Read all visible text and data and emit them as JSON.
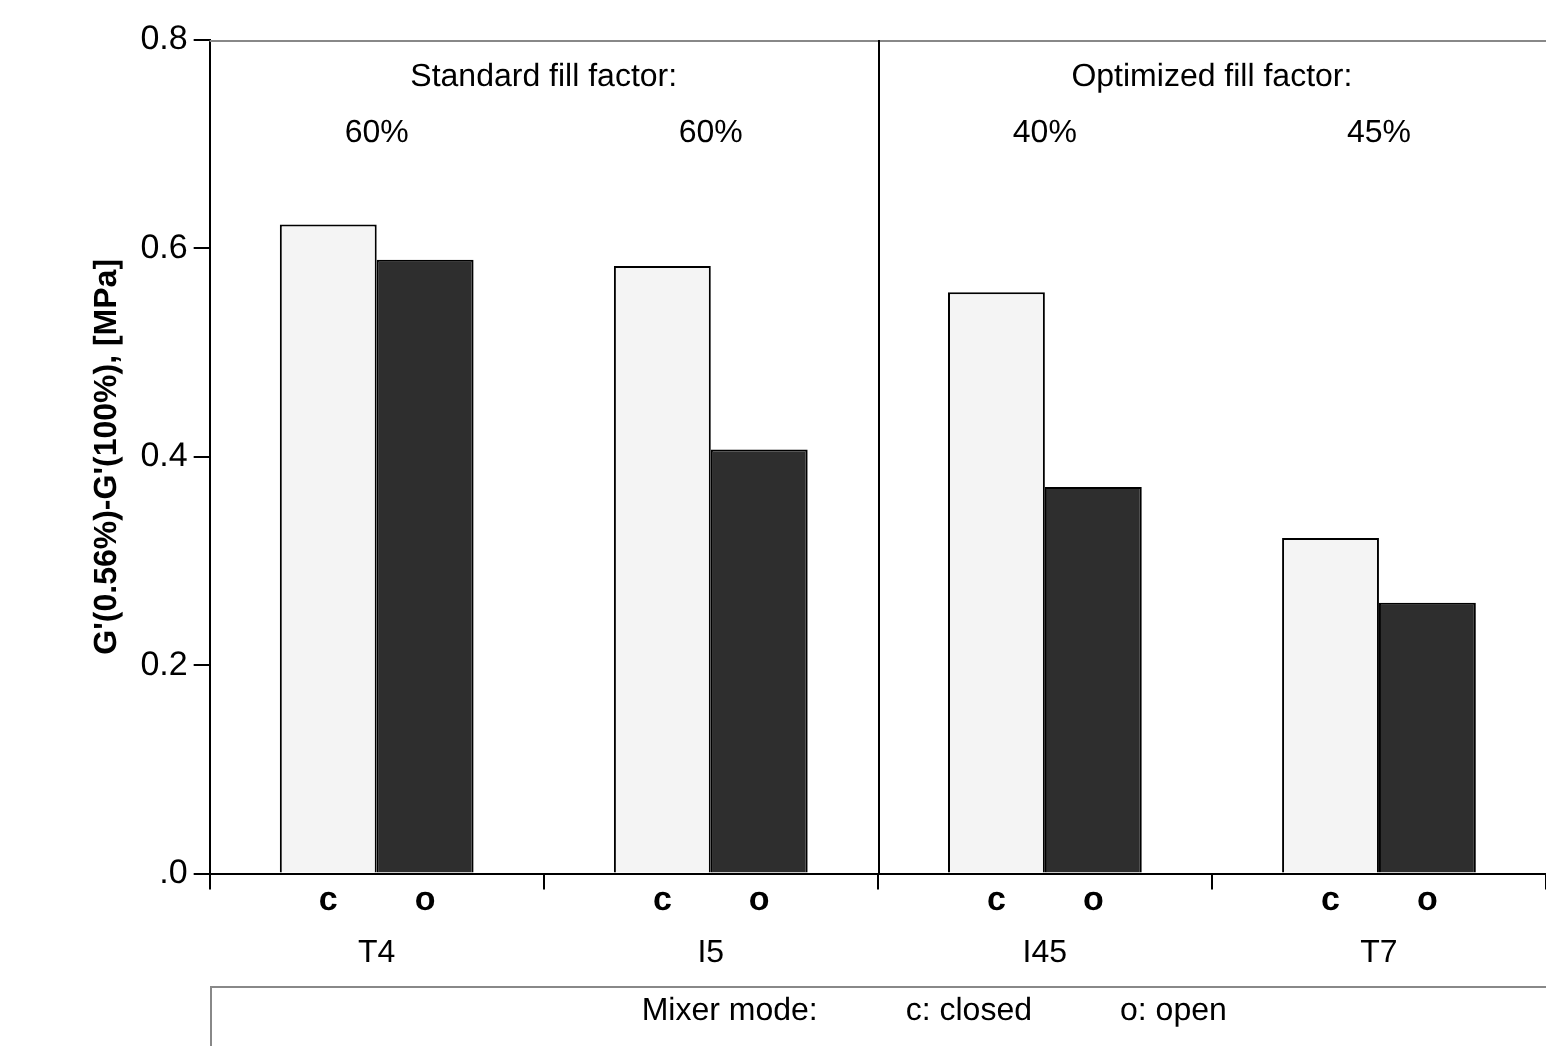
{
  "chart_data": {
    "type": "bar",
    "ylabel": "G'(0.56%)-G'(100%), [MPa]",
    "legend_title": "Mixer mode:",
    "categories": [
      "T4",
      "I5",
      "I45",
      "T7"
    ],
    "series": [
      {
        "name": "c",
        "color": "#f4f4f4",
        "values": [
          0.623,
          0.583,
          0.558,
          0.322
        ]
      },
      {
        "name": "o",
        "color": "#2e2e2e",
        "values": [
          0.589,
          0.407,
          0.371,
          0.26
        ]
      }
    ],
    "ylim": [
      0,
      0.8
    ],
    "yticks": [
      {
        "value": 0,
        "label": ".0"
      },
      0.2,
      0.4,
      0.6,
      0.8
    ],
    "grid": false,
    "legend": "bottom",
    "annotations": [
      "Standard fill factor:",
      "Optimized fill factor:",
      "60%",
      "60%",
      "40%",
      "45%",
      "c: closed",
      "o: open"
    ]
  }
}
